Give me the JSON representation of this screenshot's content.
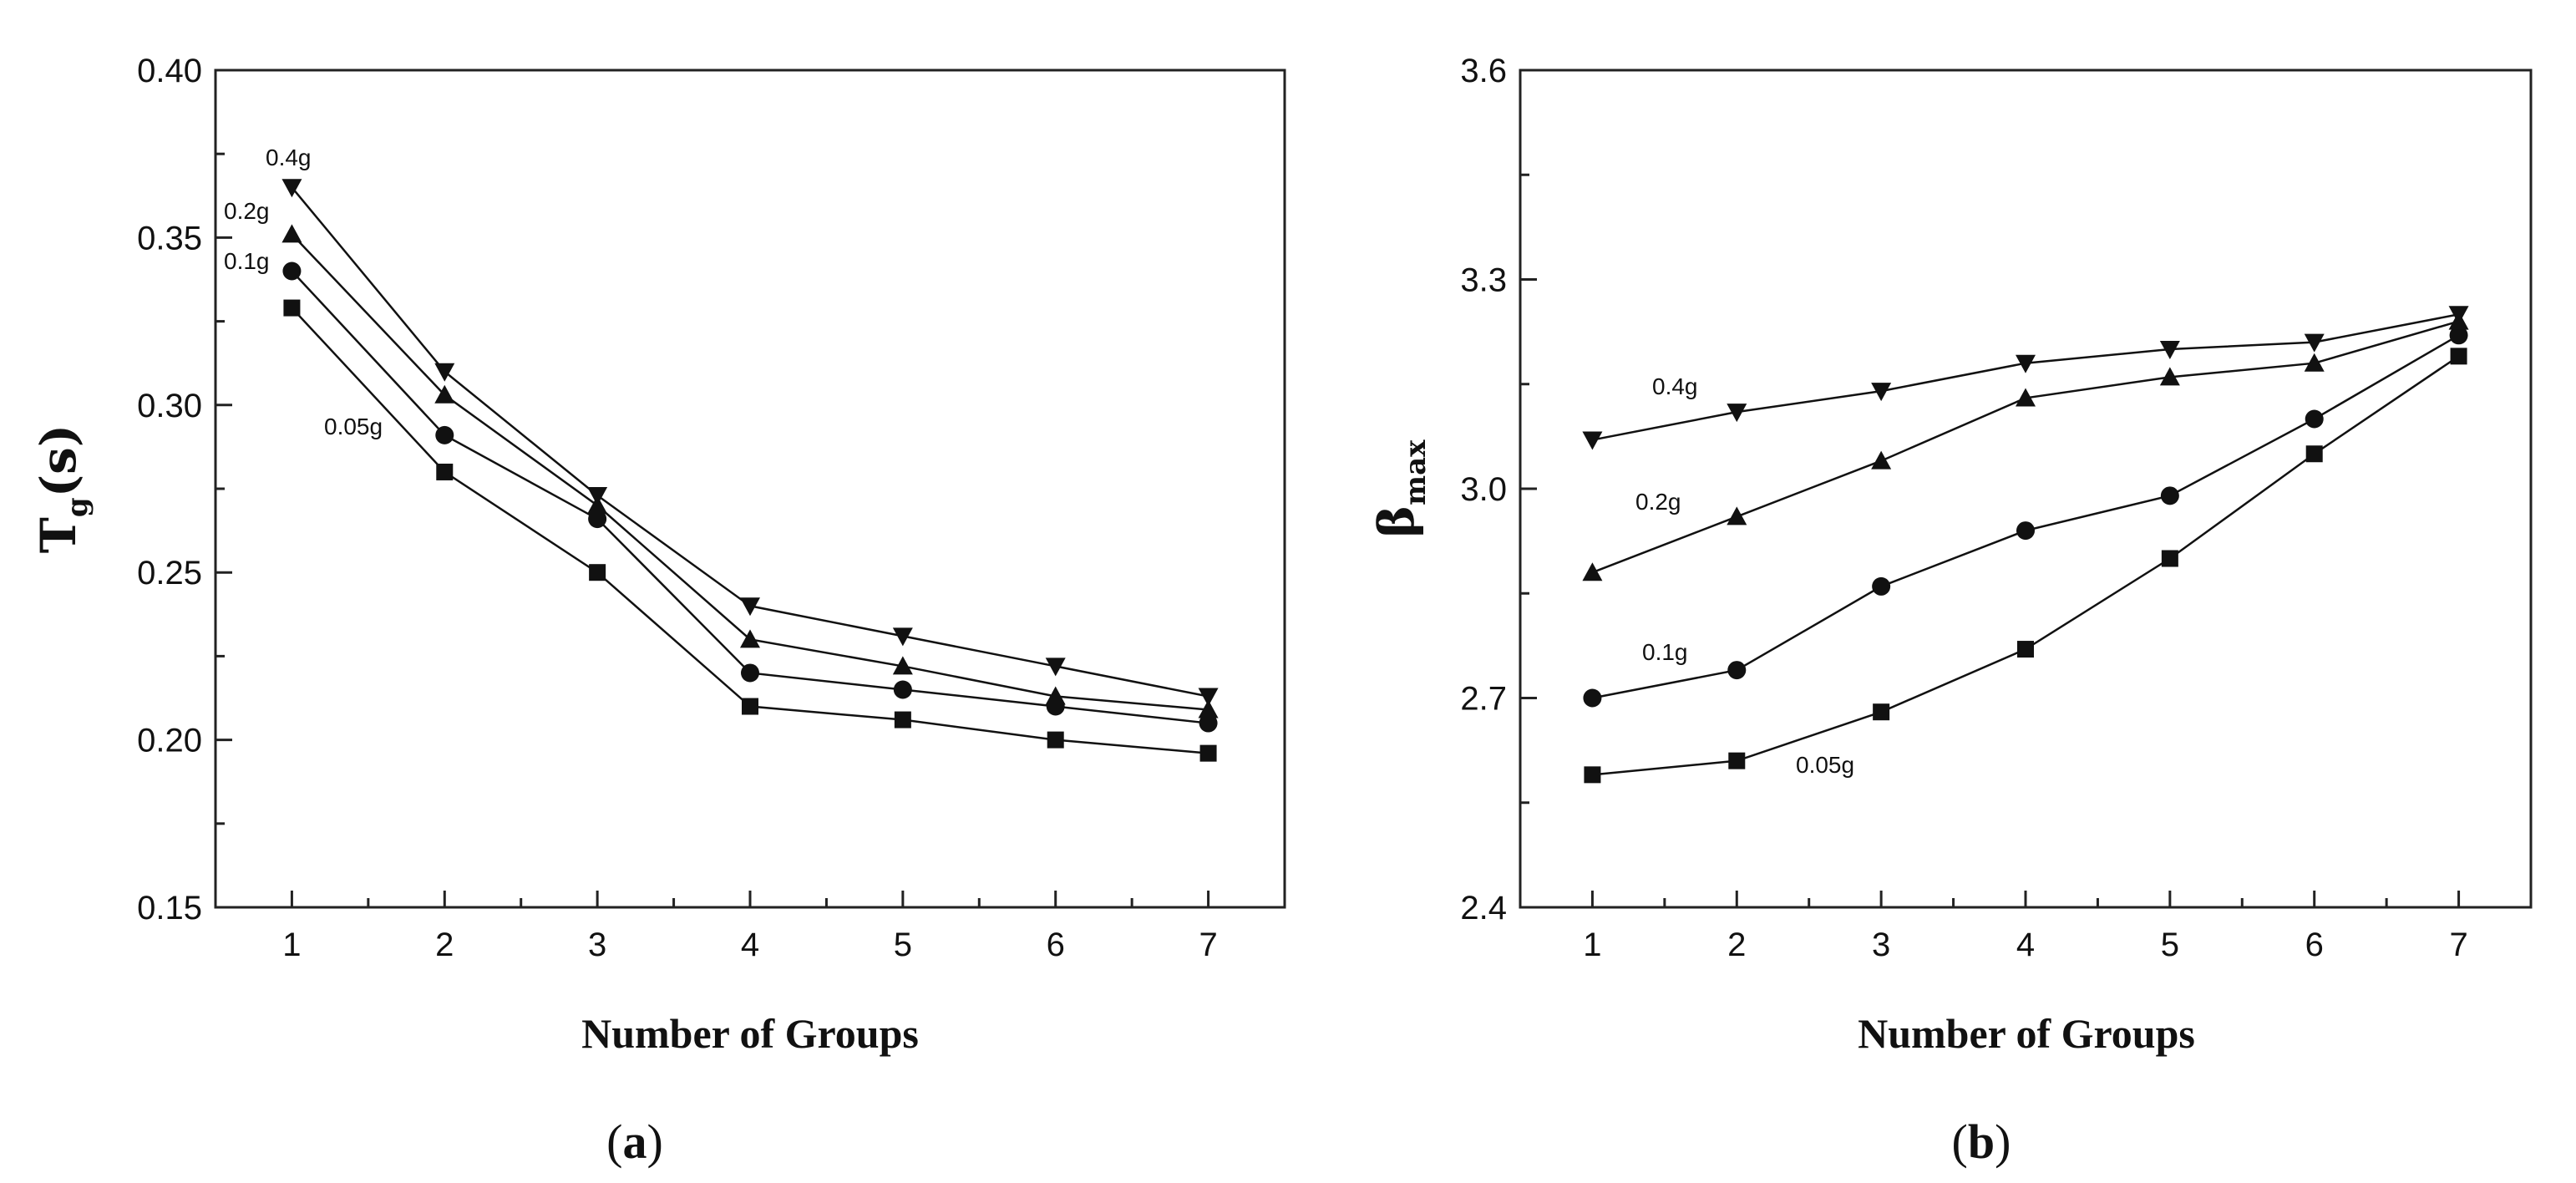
{
  "chart_data": [
    {
      "type": "line",
      "panel": "a",
      "panel_label": "(a)",
      "panel_letter": "a",
      "xlabel": "Number of Groups",
      "ylabel": {
        "main": "T",
        "sub": "g",
        "suffix": "(s)"
      },
      "xlim": [
        0.5,
        7.5
      ],
      "ylim": [
        0.15,
        0.4
      ],
      "xticks": [
        1,
        2,
        3,
        4,
        5,
        6,
        7
      ],
      "yticks": [
        "0.15",
        "0.20",
        "0.25",
        "0.30",
        "0.35",
        "0.40"
      ],
      "x": [
        1,
        2,
        3,
        4,
        5,
        6,
        7
      ],
      "series": [
        {
          "name": "0.05g",
          "marker": "square",
          "values": [
            0.329,
            0.28,
            0.25,
            0.21,
            0.206,
            0.2,
            0.196
          ]
        },
        {
          "name": "0.1g",
          "marker": "circle",
          "values": [
            0.34,
            0.291,
            0.266,
            0.22,
            0.215,
            0.21,
            0.205
          ]
        },
        {
          "name": "0.2g",
          "marker": "triangle-up",
          "values": [
            0.351,
            0.303,
            0.27,
            0.23,
            0.222,
            0.213,
            0.209
          ]
        },
        {
          "name": "0.4g",
          "marker": "triangle-down",
          "values": [
            0.365,
            0.31,
            0.273,
            0.24,
            0.231,
            0.222,
            0.213
          ]
        }
      ]
    },
    {
      "type": "line",
      "panel": "b",
      "panel_label": "(b)",
      "panel_letter": "b",
      "xlabel": "Number of Groups",
      "ylabel": {
        "main": "β",
        "sub": "max",
        "suffix": ""
      },
      "xlim": [
        0.5,
        7.5
      ],
      "ylim": [
        2.4,
        3.6
      ],
      "xticks": [
        1,
        2,
        3,
        4,
        5,
        6,
        7
      ],
      "yticks": [
        "2.4",
        "2.7",
        "3.0",
        "3.3",
        "3.6"
      ],
      "x": [
        1,
        2,
        3,
        4,
        5,
        6,
        7
      ],
      "series": [
        {
          "name": "0.05g",
          "marker": "square",
          "values": [
            2.59,
            2.61,
            2.68,
            2.77,
            2.9,
            3.05,
            3.19
          ]
        },
        {
          "name": "0.1g",
          "marker": "circle",
          "values": [
            2.7,
            2.74,
            2.86,
            2.94,
            2.99,
            3.1,
            3.22
          ]
        },
        {
          "name": "0.2g",
          "marker": "triangle-up",
          "values": [
            2.88,
            2.96,
            3.04,
            3.13,
            3.16,
            3.18,
            3.24
          ]
        },
        {
          "name": "0.4g",
          "marker": "triangle-down",
          "values": [
            3.07,
            3.11,
            3.14,
            3.18,
            3.2,
            3.21,
            3.25
          ]
        }
      ]
    }
  ]
}
